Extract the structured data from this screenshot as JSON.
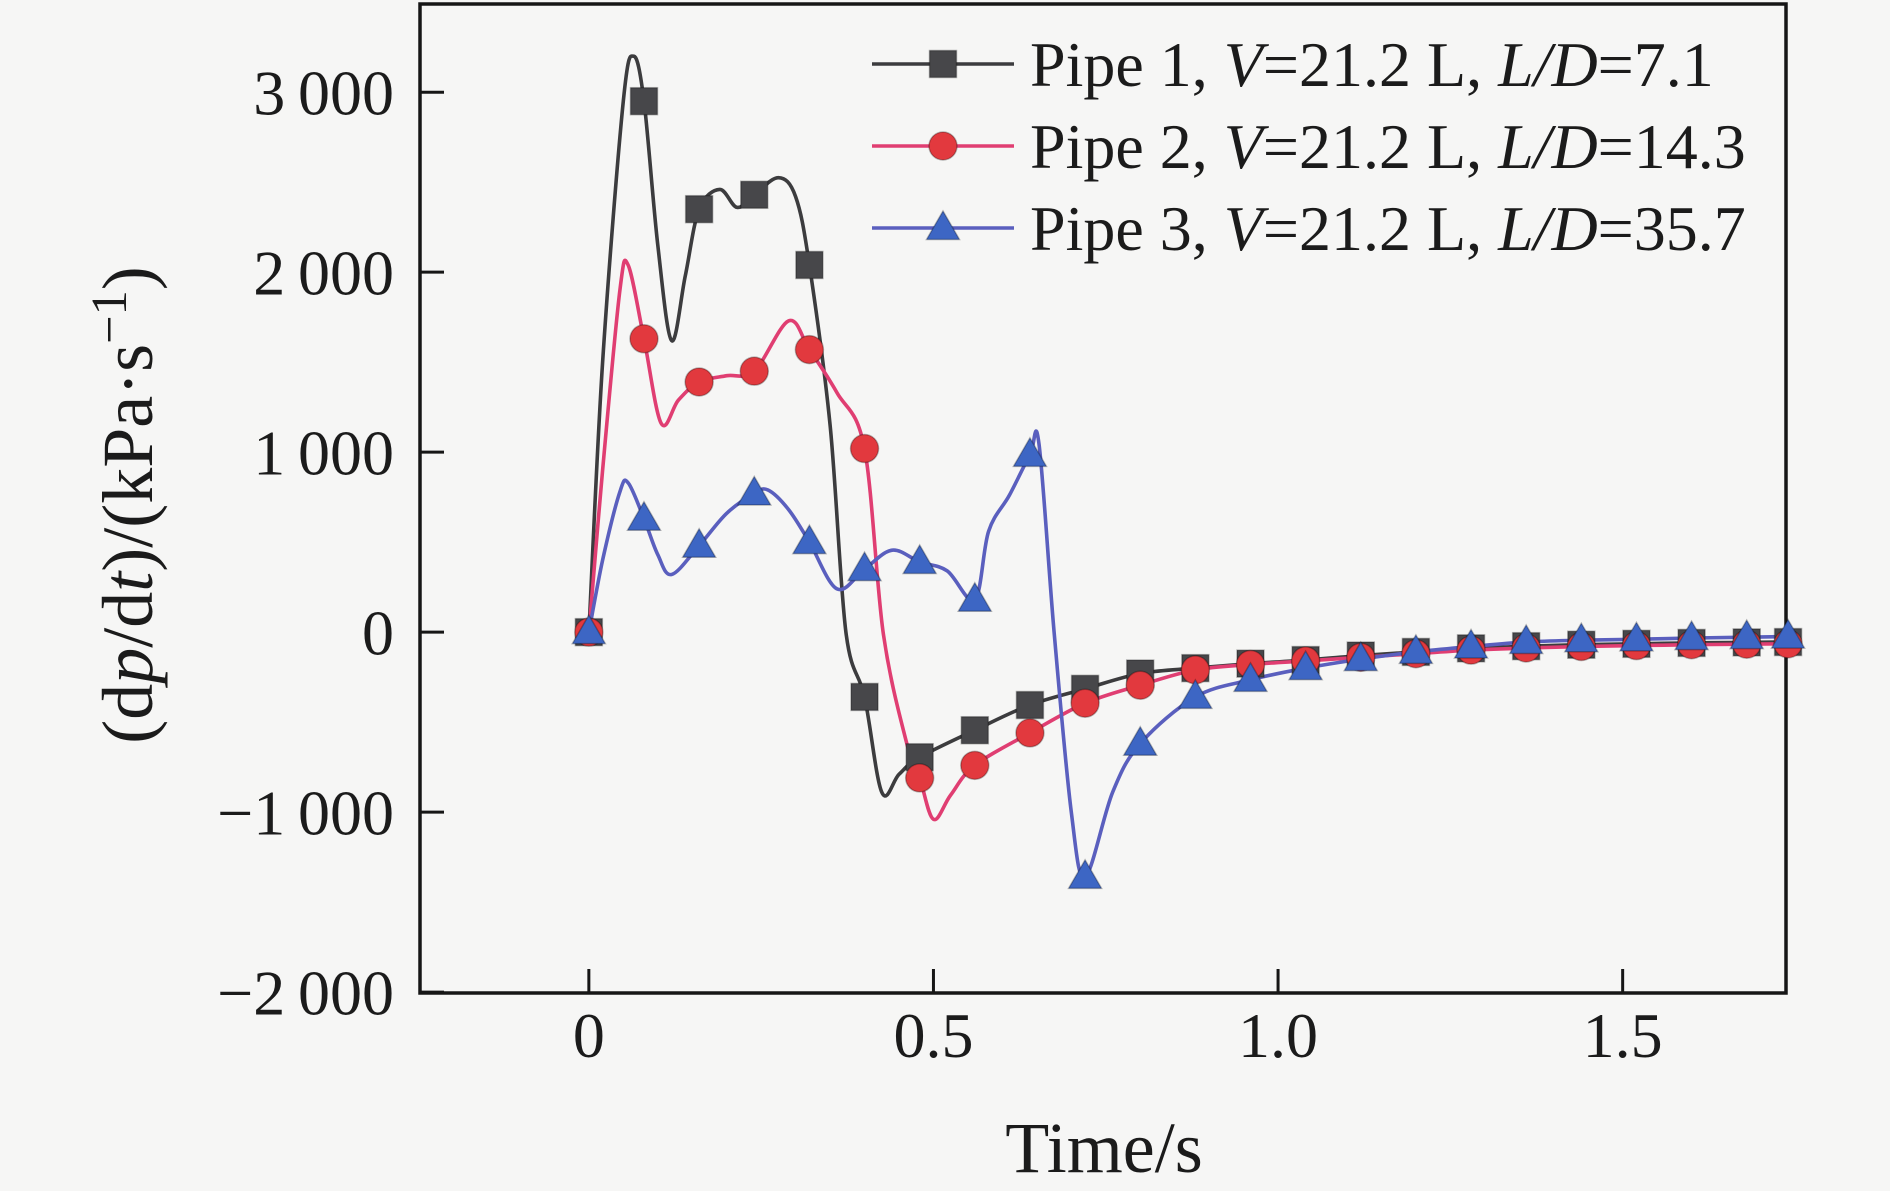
{
  "figure": {
    "background": "#f6f6f5",
    "axis_color": "#161616",
    "text_color": "#1b1b1b"
  },
  "chart_data": {
    "type": "line",
    "title": "",
    "xlabel": "Time/s",
    "ylabel": "(dp/dt)/(kPa·s−1)",
    "ylabel_segments": [
      {
        "t": "(d"
      },
      {
        "t": "p",
        "italic": true
      },
      {
        "t": "/d"
      },
      {
        "t": "t",
        "italic": true
      },
      {
        "t": ")/(kPa·s"
      },
      {
        "t": "−1",
        "sup": true
      },
      {
        "t": ")"
      }
    ],
    "xlim": [
      -0.245,
      1.737
    ],
    "ylim": [
      -2005,
      3490
    ],
    "grid": false,
    "legend_position": "top-right-inside",
    "xticks": [
      {
        "v": 0,
        "label": "0"
      },
      {
        "v": 0.5,
        "label": "0.5"
      },
      {
        "v": 1.0,
        "label": "1.0"
      },
      {
        "v": 1.5,
        "label": "1.5"
      }
    ],
    "yticks": [
      {
        "v": 3000,
        "label": "3 000"
      },
      {
        "v": 2000,
        "label": "2 000"
      },
      {
        "v": 1000,
        "label": "1 000"
      },
      {
        "v": 0,
        "label": "0"
      },
      {
        "v": -1000,
        "label": "−1 000"
      },
      {
        "v": -2000,
        "label": "−2 000"
      }
    ],
    "series": [
      {
        "name": "Pipe 1, V=21.2 L, L/D=7.1",
        "legend_segments": [
          {
            "t": "Pipe 1, "
          },
          {
            "t": "V",
            "italic": true
          },
          {
            "t": "=21.2 L, "
          },
          {
            "t": "L/D",
            "italic": true
          },
          {
            "t": "=7.1"
          }
        ],
        "marker": "square",
        "line_color": "#3c3c3e",
        "marker_color": "#47474a",
        "markers": [
          [
            0,
            0
          ],
          [
            0.08,
            2950
          ],
          [
            0.16,
            2350
          ],
          [
            0.24,
            2430
          ],
          [
            0.32,
            2040
          ],
          [
            0.4,
            -360
          ],
          [
            0.48,
            -695
          ],
          [
            0.56,
            -545
          ],
          [
            0.64,
            -405
          ],
          [
            0.72,
            -315
          ],
          [
            0.8,
            -230
          ],
          [
            0.88,
            -200
          ],
          [
            0.96,
            -175
          ],
          [
            1.04,
            -155
          ],
          [
            1.12,
            -130
          ],
          [
            1.2,
            -110
          ],
          [
            1.28,
            -90
          ],
          [
            1.36,
            -78
          ],
          [
            1.44,
            -70
          ],
          [
            1.52,
            -65
          ],
          [
            1.6,
            -60
          ],
          [
            1.68,
            -57
          ],
          [
            1.74,
            -55
          ]
        ],
        "path": [
          [
            0,
            0
          ],
          [
            0.02,
            1500
          ],
          [
            0.05,
            2950
          ],
          [
            0.065,
            3200
          ],
          [
            0.08,
            2950
          ],
          [
            0.1,
            2150
          ],
          [
            0.12,
            1620
          ],
          [
            0.14,
            1980
          ],
          [
            0.16,
            2350
          ],
          [
            0.19,
            2460
          ],
          [
            0.215,
            2360
          ],
          [
            0.24,
            2430
          ],
          [
            0.275,
            2525
          ],
          [
            0.3,
            2420
          ],
          [
            0.32,
            2040
          ],
          [
            0.35,
            1150
          ],
          [
            0.373,
            0
          ],
          [
            0.4,
            -360
          ],
          [
            0.425,
            -890
          ],
          [
            0.45,
            -790
          ],
          [
            0.48,
            -695
          ],
          [
            0.56,
            -545
          ],
          [
            0.64,
            -405
          ],
          [
            0.72,
            -315
          ],
          [
            0.8,
            -230
          ],
          [
            0.88,
            -200
          ],
          [
            0.96,
            -175
          ],
          [
            1.04,
            -155
          ],
          [
            1.12,
            -130
          ],
          [
            1.2,
            -110
          ],
          [
            1.28,
            -90
          ],
          [
            1.36,
            -78
          ],
          [
            1.44,
            -70
          ],
          [
            1.52,
            -65
          ],
          [
            1.6,
            -60
          ],
          [
            1.68,
            -57
          ],
          [
            1.74,
            -55
          ]
        ]
      },
      {
        "name": "Pipe 2, V=21.2 L, L/D=14.3",
        "legend_segments": [
          {
            "t": "Pipe 2, "
          },
          {
            "t": "V",
            "italic": true
          },
          {
            "t": "=21.2 L, "
          },
          {
            "t": "L/D",
            "italic": true
          },
          {
            "t": "=14.3"
          }
        ],
        "marker": "circle",
        "line_color": "#e03e72",
        "marker_color": "#e2393e",
        "markers": [
          [
            0,
            0
          ],
          [
            0.08,
            1630
          ],
          [
            0.16,
            1390
          ],
          [
            0.24,
            1450
          ],
          [
            0.32,
            1570
          ],
          [
            0.4,
            1020
          ],
          [
            0.48,
            -810
          ],
          [
            0.56,
            -740
          ],
          [
            0.64,
            -560
          ],
          [
            0.72,
            -395
          ],
          [
            0.8,
            -295
          ],
          [
            0.88,
            -210
          ],
          [
            0.96,
            -180
          ],
          [
            1.04,
            -160
          ],
          [
            1.12,
            -140
          ],
          [
            1.2,
            -120
          ],
          [
            1.28,
            -100
          ],
          [
            1.36,
            -88
          ],
          [
            1.44,
            -80
          ],
          [
            1.52,
            -75
          ],
          [
            1.6,
            -70
          ],
          [
            1.68,
            -67
          ],
          [
            1.74,
            -65
          ]
        ],
        "path": [
          [
            0,
            0
          ],
          [
            0.02,
            900
          ],
          [
            0.045,
            1900
          ],
          [
            0.057,
            2040
          ],
          [
            0.08,
            1630
          ],
          [
            0.105,
            1160
          ],
          [
            0.13,
            1290
          ],
          [
            0.16,
            1390
          ],
          [
            0.2,
            1425
          ],
          [
            0.24,
            1450
          ],
          [
            0.29,
            1730
          ],
          [
            0.32,
            1570
          ],
          [
            0.36,
            1330
          ],
          [
            0.4,
            1020
          ],
          [
            0.427,
            0
          ],
          [
            0.46,
            -600
          ],
          [
            0.48,
            -810
          ],
          [
            0.5,
            -1040
          ],
          [
            0.525,
            -905
          ],
          [
            0.56,
            -740
          ],
          [
            0.64,
            -560
          ],
          [
            0.72,
            -395
          ],
          [
            0.8,
            -295
          ],
          [
            0.88,
            -210
          ],
          [
            0.96,
            -180
          ],
          [
            1.04,
            -160
          ],
          [
            1.12,
            -140
          ],
          [
            1.2,
            -120
          ],
          [
            1.28,
            -100
          ],
          [
            1.36,
            -88
          ],
          [
            1.44,
            -80
          ],
          [
            1.52,
            -75
          ],
          [
            1.6,
            -70
          ],
          [
            1.68,
            -67
          ],
          [
            1.74,
            -65
          ]
        ]
      },
      {
        "name": "Pipe 3, V=21.2 L, L/D=35.7",
        "legend_segments": [
          {
            "t": "Pipe 3, "
          },
          {
            "t": "V",
            "italic": true
          },
          {
            "t": "=21.2 L, "
          },
          {
            "t": "L/D",
            "italic": true
          },
          {
            "t": "=35.7"
          }
        ],
        "marker": "triangle",
        "line_color": "#5a5fbe",
        "marker_color": "#3d66c4",
        "markers": [
          [
            0,
            0
          ],
          [
            0.08,
            630
          ],
          [
            0.16,
            480
          ],
          [
            0.24,
            770
          ],
          [
            0.32,
            500
          ],
          [
            0.4,
            350
          ],
          [
            0.48,
            390
          ],
          [
            0.56,
            180
          ],
          [
            0.64,
            985
          ],
          [
            0.72,
            -1360
          ],
          [
            0.8,
            -620
          ],
          [
            0.88,
            -360
          ],
          [
            0.96,
            -265
          ],
          [
            1.04,
            -200
          ],
          [
            1.12,
            -150
          ],
          [
            1.2,
            -110
          ],
          [
            1.28,
            -80
          ],
          [
            1.36,
            -55
          ],
          [
            1.44,
            -45
          ],
          [
            1.52,
            -40
          ],
          [
            1.6,
            -33
          ],
          [
            1.68,
            -28
          ],
          [
            1.74,
            -25
          ]
        ],
        "path": [
          [
            0,
            0
          ],
          [
            0.02,
            400
          ],
          [
            0.045,
            780
          ],
          [
            0.057,
            830
          ],
          [
            0.08,
            630
          ],
          [
            0.1,
            430
          ],
          [
            0.12,
            320
          ],
          [
            0.16,
            480
          ],
          [
            0.2,
            660
          ],
          [
            0.24,
            770
          ],
          [
            0.26,
            790
          ],
          [
            0.29,
            680
          ],
          [
            0.32,
            500
          ],
          [
            0.36,
            240
          ],
          [
            0.4,
            350
          ],
          [
            0.44,
            455
          ],
          [
            0.48,
            390
          ],
          [
            0.52,
            340
          ],
          [
            0.56,
            180
          ],
          [
            0.58,
            560
          ],
          [
            0.61,
            760
          ],
          [
            0.64,
            985
          ],
          [
            0.653,
            1050
          ],
          [
            0.675,
            0
          ],
          [
            0.7,
            -1000
          ],
          [
            0.72,
            -1360
          ],
          [
            0.76,
            -890
          ],
          [
            0.8,
            -620
          ],
          [
            0.88,
            -360
          ],
          [
            0.96,
            -265
          ],
          [
            1.04,
            -200
          ],
          [
            1.12,
            -150
          ],
          [
            1.2,
            -110
          ],
          [
            1.28,
            -80
          ],
          [
            1.36,
            -55
          ],
          [
            1.44,
            -45
          ],
          [
            1.52,
            -40
          ],
          [
            1.6,
            -33
          ],
          [
            1.68,
            -28
          ],
          [
            1.74,
            -25
          ]
        ]
      }
    ]
  }
}
